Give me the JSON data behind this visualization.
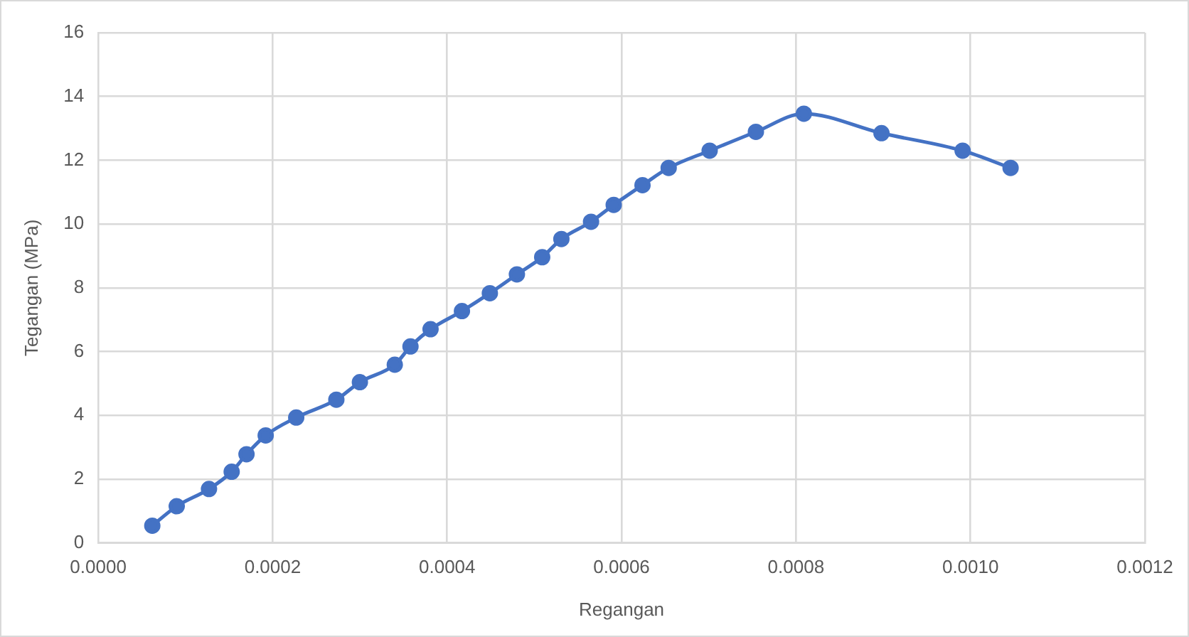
{
  "chart_data": {
    "type": "line",
    "xlabel": "Regangan",
    "ylabel": "Tegangan (MPa)",
    "x": [
      6.2e-05,
      9e-05,
      0.000127,
      0.000153,
      0.00017,
      0.000192,
      0.000227,
      0.000273,
      0.0003,
      0.00034,
      0.000358,
      0.000381,
      0.000417,
      0.000449,
      0.00048,
      0.000509,
      0.000531,
      0.000565,
      0.000591,
      0.000624,
      0.000654,
      0.000701,
      0.000754,
      0.000809,
      0.000898,
      0.000991,
      0.001046
    ],
    "series": [
      {
        "color": "#4472c4",
        "values": [
          0.54,
          1.15,
          1.69,
          2.23,
          2.78,
          3.37,
          3.93,
          4.49,
          5.04,
          5.59,
          6.16,
          6.7,
          7.27,
          7.83,
          8.42,
          8.96,
          9.53,
          10.07,
          10.6,
          11.22,
          11.76,
          12.3,
          12.89,
          13.46,
          12.85,
          12.3,
          11.76
        ]
      }
    ],
    "xlim": [
      0,
      0.0012
    ],
    "xticks": [
      {
        "value": 0,
        "label": "0.0000"
      },
      {
        "value": 0.0002,
        "label": "0.0002"
      },
      {
        "value": 0.0004,
        "label": "0.0004"
      },
      {
        "value": 0.0006,
        "label": "0.0006"
      },
      {
        "value": 0.0008,
        "label": "0.0008"
      },
      {
        "value": 0.001,
        "label": "0.0010"
      },
      {
        "value": 0.0012,
        "label": "0.0012"
      }
    ],
    "ylim": [
      0,
      16
    ],
    "yticks": [
      0,
      2,
      4,
      6,
      8,
      10,
      12,
      14,
      16
    ],
    "grid": true,
    "legend": false,
    "marker": "circle",
    "line_style": "solid"
  }
}
